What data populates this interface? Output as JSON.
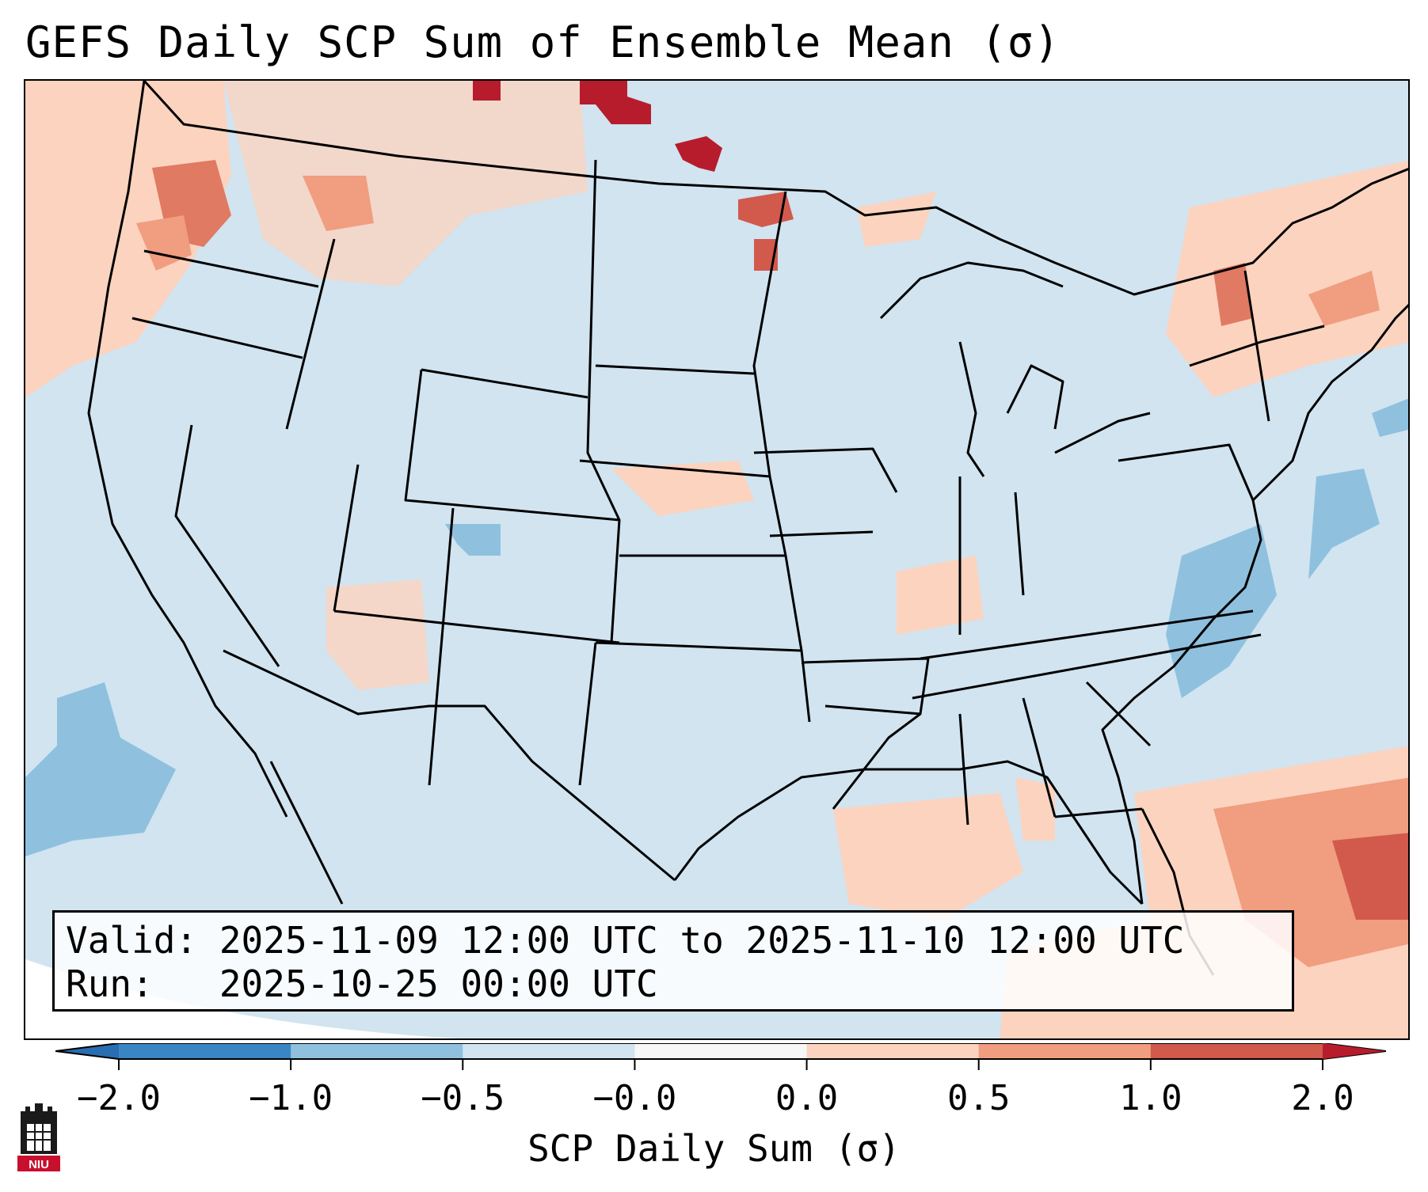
{
  "title": "GEFS Daily SCP Sum of Ensemble Mean (σ)",
  "info": {
    "valid_line": "Valid: 2025-11-09 12:00 UTC to 2025-11-10 12:00 UTC",
    "run_line": "Run:   2025-10-25 00:00 UTC"
  },
  "colorbar": {
    "label": "SCP Daily Sum (σ)",
    "ticks": [
      "−2.0",
      "−1.0",
      "−0.5",
      "−0.0",
      "0.0",
      "0.5",
      "1.0",
      "2.0"
    ],
    "colors": [
      "#3a86c5",
      "#8fc1df",
      "#d1e4f0",
      "#f7f7f7",
      "#fcd3bf",
      "#f09d80",
      "#d15a4d"
    ],
    "under_color": "#2a6db0",
    "over_color": "#b71c2d"
  },
  "map": {
    "background_ocean": "#d1e4f0",
    "region": "Continental United States",
    "regions": [
      {
        "name": "pacific-northwest",
        "value": 0.8
      },
      {
        "name": "north-dakota-canada-border",
        "value": 1.6
      },
      {
        "name": "montana-north",
        "value": 0.4
      },
      {
        "name": "northeast-new-england",
        "value": 0.6
      },
      {
        "name": "gulf-of-mexico",
        "value": 0.3
      },
      {
        "name": "bahamas-atlantic",
        "value": 1.0
      },
      {
        "name": "tennessee",
        "value": 0.3
      },
      {
        "name": "pacific-ocean-southwest",
        "value": -0.7
      },
      {
        "name": "atlantic-offshore",
        "value": -0.6
      }
    ]
  },
  "logo": {
    "text": "NIU"
  }
}
